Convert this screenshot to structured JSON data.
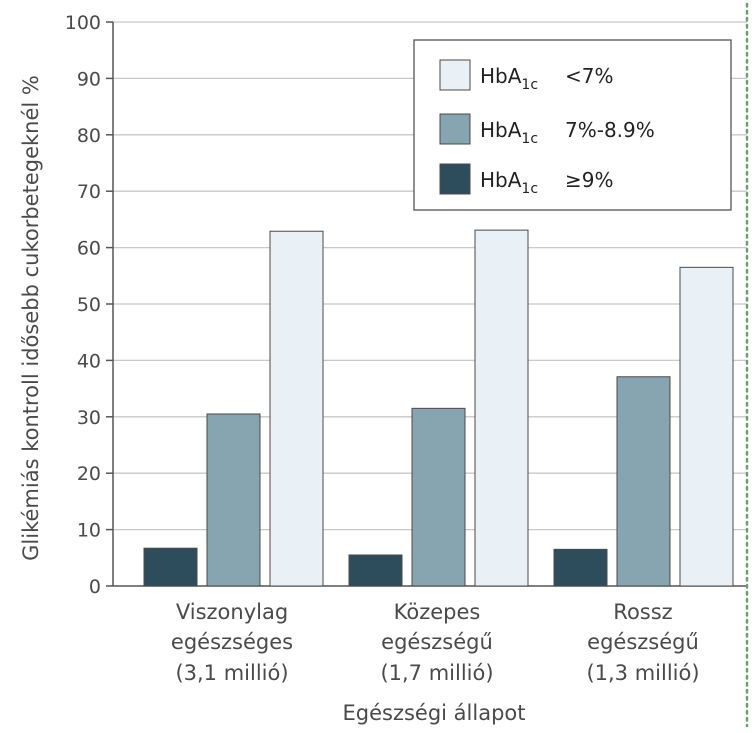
{
  "chart_data": {
    "type": "bar",
    "title": "",
    "ylabel": "Glikémiás kontroll idősebb cukorbetegeknél %",
    "xlabel": "Egészségi állapot",
    "ylim": [
      0,
      100
    ],
    "yticks": [
      0,
      10,
      20,
      30,
      40,
      50,
      60,
      70,
      80,
      90,
      100
    ],
    "grid": true,
    "legend_position": "top-right",
    "categories": [
      {
        "lines": [
          "Viszonylag",
          "egészséges",
          "(3,1 millió)"
        ]
      },
      {
        "lines": [
          "Közepes",
          "egészségű",
          "(1,7 millió)"
        ]
      },
      {
        "lines": [
          "Rossz",
          "egészségű",
          "(1,3 millió)"
        ]
      }
    ],
    "series": [
      {
        "name_main": "HbA",
        "name_sub": "1c",
        "name_suffix": "≥9%",
        "color": "#2d4d5c",
        "values": [
          6.7,
          5.5,
          6.5
        ]
      },
      {
        "name_main": "HbA",
        "name_sub": "1c",
        "name_suffix": "7%-8.9%",
        "color": "#87a4b1",
        "values": [
          30.5,
          31.5,
          37.1
        ]
      },
      {
        "name_main": "HbA",
        "name_sub": "1c",
        "name_suffix": "<7%",
        "color": "#e9f1f6",
        "values": [
          62.9,
          63.1,
          56.5
        ]
      }
    ],
    "legend_order": [
      2,
      1,
      0
    ],
    "colors": {
      "grid": "#c8c8c8",
      "axis": "#555555",
      "bar_stroke": "#4a4a4a",
      "border_dots": "#6aa06a"
    }
  }
}
